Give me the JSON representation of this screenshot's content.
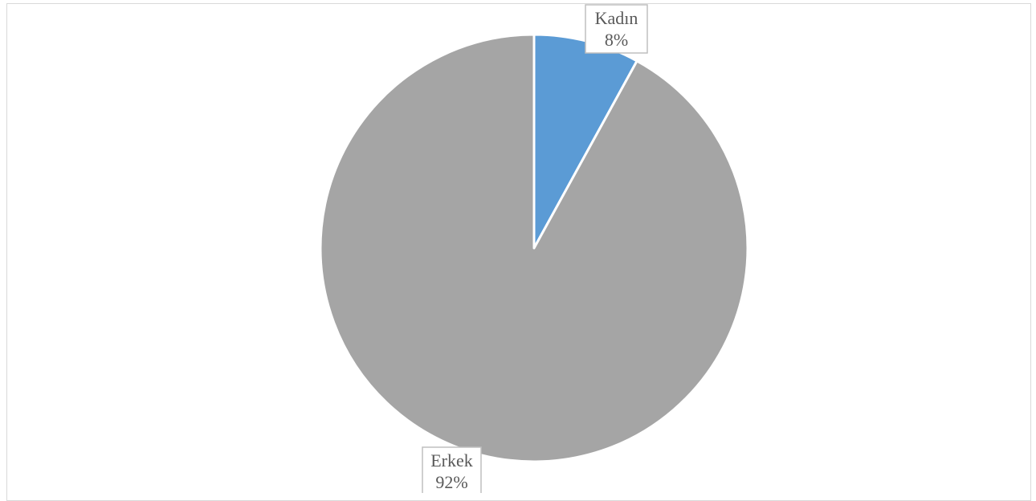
{
  "chart_data": {
    "type": "pie",
    "title": "",
    "slices": [
      {
        "label": "Kadın",
        "value": 8,
        "value_label": "8%",
        "color": "#5b9bd5"
      },
      {
        "label": "Erkek",
        "value": 92,
        "value_label": "92%",
        "color": "#a5a5a5"
      }
    ],
    "start_angle_deg": 0,
    "direction": "clockwise",
    "legend": "none",
    "data_labels": "category-and-percent"
  }
}
